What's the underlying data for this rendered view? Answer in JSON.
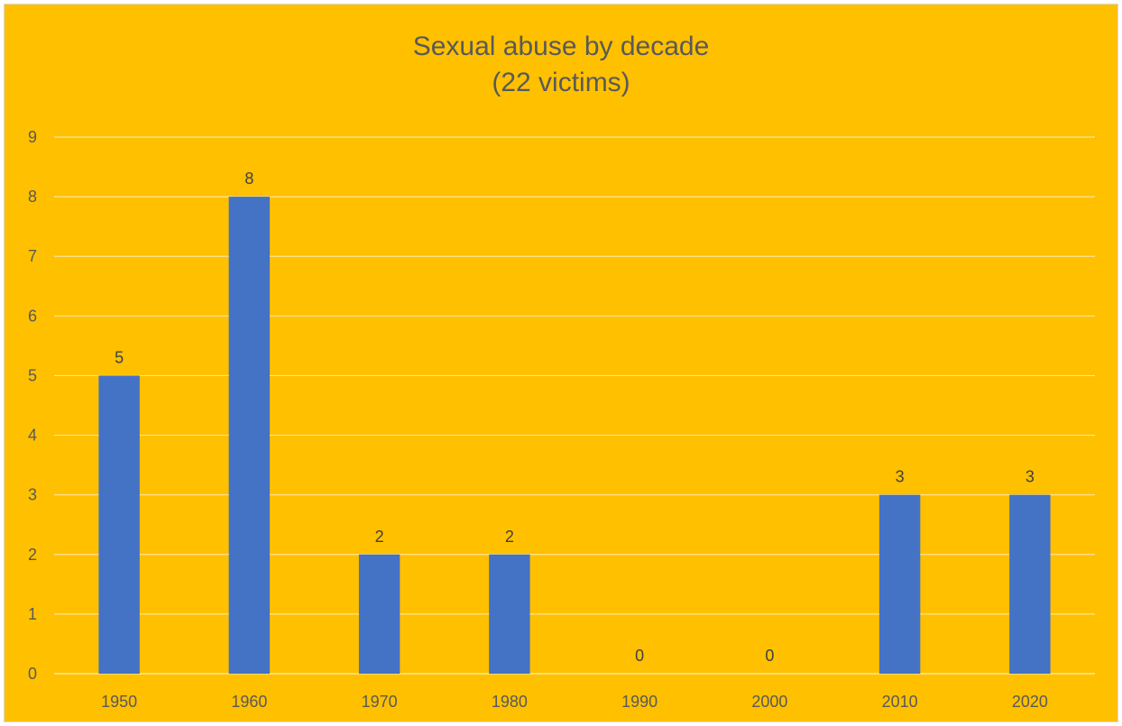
{
  "chart_data": {
    "type": "bar",
    "title": "Sexual abuse by decade",
    "subtitle": "(22 victims)",
    "xlabel": "",
    "ylabel": "",
    "categories": [
      "1950",
      "1960",
      "1970",
      "1980",
      "1990",
      "2000",
      "2010",
      "2020"
    ],
    "values": [
      5,
      8,
      2,
      2,
      0,
      0,
      3,
      3
    ],
    "data_labels": [
      "5",
      "8",
      "2",
      "2",
      "0",
      "0",
      "3",
      "3"
    ],
    "ylim": [
      0,
      9
    ],
    "yticks": [
      "0",
      "1",
      "2",
      "3",
      "4",
      "5",
      "6",
      "7",
      "8",
      "9"
    ],
    "grid": true,
    "legend": "none",
    "colors": {
      "background": "#FFC000",
      "bar": "#4472C4",
      "gridline": "#FFE699",
      "axis_line": "#FFE699",
      "text": "#595959"
    }
  }
}
